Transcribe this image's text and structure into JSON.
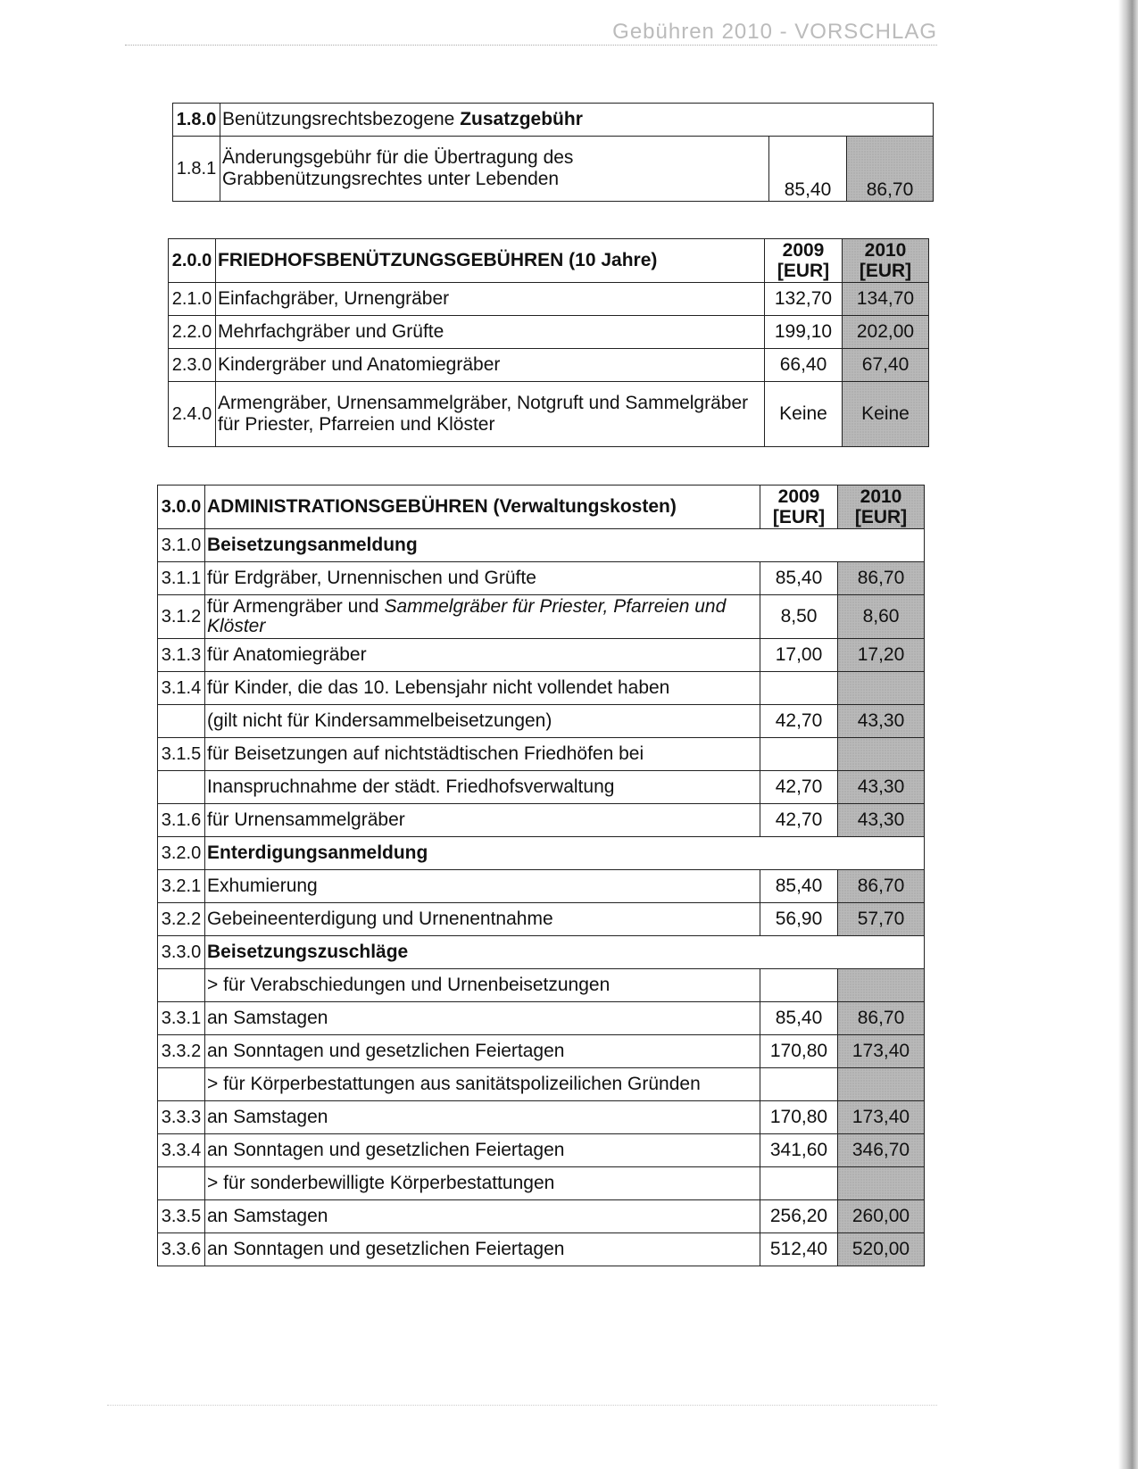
{
  "header": {
    "title": "Gebühren 2010 - VORSCHLAG"
  },
  "tables": [
    {
      "id": "t1",
      "head": {
        "code": "1.8.0",
        "label_plain": "Benützungsrechtsbezogene ",
        "label_bold": "Zusatzgebühr",
        "col2009": "",
        "col2010": ""
      },
      "rows": [
        {
          "code": "1.8.1",
          "desc": "Änderungsgebühr für die Übertragung des Grabbenützungsrechtes unter Lebenden",
          "v2009": "85,40",
          "v2010": "86,70",
          "size": "vtall"
        }
      ]
    },
    {
      "id": "t2",
      "head": {
        "code": "2.0.0",
        "label_bold": "FRIEDHOFSBENÜTZUNGSGEBÜHREN (10 Jahre)",
        "col2009": "2009 [EUR]",
        "col2010": "2010 [EUR]"
      },
      "rows": [
        {
          "code": "2.1.0",
          "desc": "Einfachgräber, Urnengräber",
          "v2009": "132,70",
          "v2010": "134,70"
        },
        {
          "code": "2.2.0",
          "desc": "Mehrfachgräber und Grüfte",
          "v2009": "199,10",
          "v2010": "202,00"
        },
        {
          "code": "2.3.0",
          "desc": "Kindergräber und Anatomiegräber",
          "v2009": "66,40",
          "v2010": "67,40"
        },
        {
          "code": "2.4.0",
          "desc": "Armengräber, Urnensammelgräber, Notgruft und Sammelgräber für Priester, Pfarreien und Klöster",
          "v2009": "Keine",
          "v2010": "Keine",
          "size": "vtall"
        }
      ]
    },
    {
      "id": "t3",
      "head": {
        "code": "3.0.0",
        "label_bold": "ADMINISTRATIONSGEBÜHREN (Verwaltungskosten)",
        "col2009": "2009 [EUR]",
        "col2010": "2010 [EUR]"
      },
      "rows": [
        {
          "code": "3.1.0",
          "section": "Beisetzungsanmeldung"
        },
        {
          "code": "3.1.1",
          "desc": "für Erdgräber, Urnennischen und Grüfte",
          "v2009": "85,40",
          "v2010": "86,70"
        },
        {
          "code": "3.1.2",
          "desc": "für Armengräber und ",
          "desc_italic": "Sammelgräber für Priester, Pfarreien und Klöster",
          "v2009": "8,50",
          "v2010": "8,60",
          "size": "tall"
        },
        {
          "code": "3.1.3",
          "desc": "für Anatomiegräber",
          "v2009": "17,00",
          "v2010": "17,20"
        },
        {
          "code": "3.1.4",
          "desc": "für Kinder, die das 10. Lebensjahr nicht vollendet haben",
          "v2009": "",
          "v2010": ""
        },
        {
          "code": "",
          "desc": "(gilt nicht für Kindersammelbeisetzungen)",
          "v2009": "42,70",
          "v2010": "43,30"
        },
        {
          "code": "3.1.5",
          "desc": "für Beisetzungen auf nichtstädtischen Friedhöfen bei",
          "v2009": "",
          "v2010": ""
        },
        {
          "code": "",
          "desc": "Inanspruchnahme der städt. Friedhofsverwaltung",
          "v2009": "42,70",
          "v2010": "43,30"
        },
        {
          "code": "3.1.6",
          "desc": "für Urnensammelgräber",
          "v2009": "42,70",
          "v2010": "43,30"
        },
        {
          "code": "3.2.0",
          "section": "Enterdigungsanmeldung"
        },
        {
          "code": "3.2.1",
          "desc": "Exhumierung",
          "v2009": "85,40",
          "v2010": "86,70"
        },
        {
          "code": "3.2.2",
          "desc": "Gebeineenterdigung und Urnenentnahme",
          "v2009": "56,90",
          "v2010": "57,70"
        },
        {
          "code": "3.3.0",
          "section": "Beisetzungszuschläge"
        },
        {
          "code": "",
          "desc": "> für Verabschiedungen und Urnenbeisetzungen",
          "v2009": "",
          "v2010": ""
        },
        {
          "code": "3.3.1",
          "desc": "an Samstagen",
          "v2009": "85,40",
          "v2010": "86,70"
        },
        {
          "code": "3.3.2",
          "desc": "an Sonntagen und gesetzlichen Feiertagen",
          "v2009": "170,80",
          "v2010": "173,40"
        },
        {
          "code": "",
          "desc": "> für Körperbestattungen aus sanitätspolizeilichen Gründen",
          "v2009": "",
          "v2010": ""
        },
        {
          "code": "3.3.3",
          "desc": "an Samstagen",
          "v2009": "170,80",
          "v2010": "173,40"
        },
        {
          "code": "3.3.4",
          "desc": "an Sonntagen und gesetzlichen Feiertagen",
          "v2009": "341,60",
          "v2010": "346,70"
        },
        {
          "code": "",
          "desc": "> für sonderbewilligte Körperbestattungen",
          "v2009": "",
          "v2010": ""
        },
        {
          "code": "3.3.5",
          "desc": "an Samstagen",
          "v2009": "256,20",
          "v2010": "260,00"
        },
        {
          "code": "3.3.6",
          "desc": "an Sonntagen und gesetzlichen Feiertagen",
          "v2009": "512,40",
          "v2010": "520,00"
        }
      ]
    }
  ]
}
